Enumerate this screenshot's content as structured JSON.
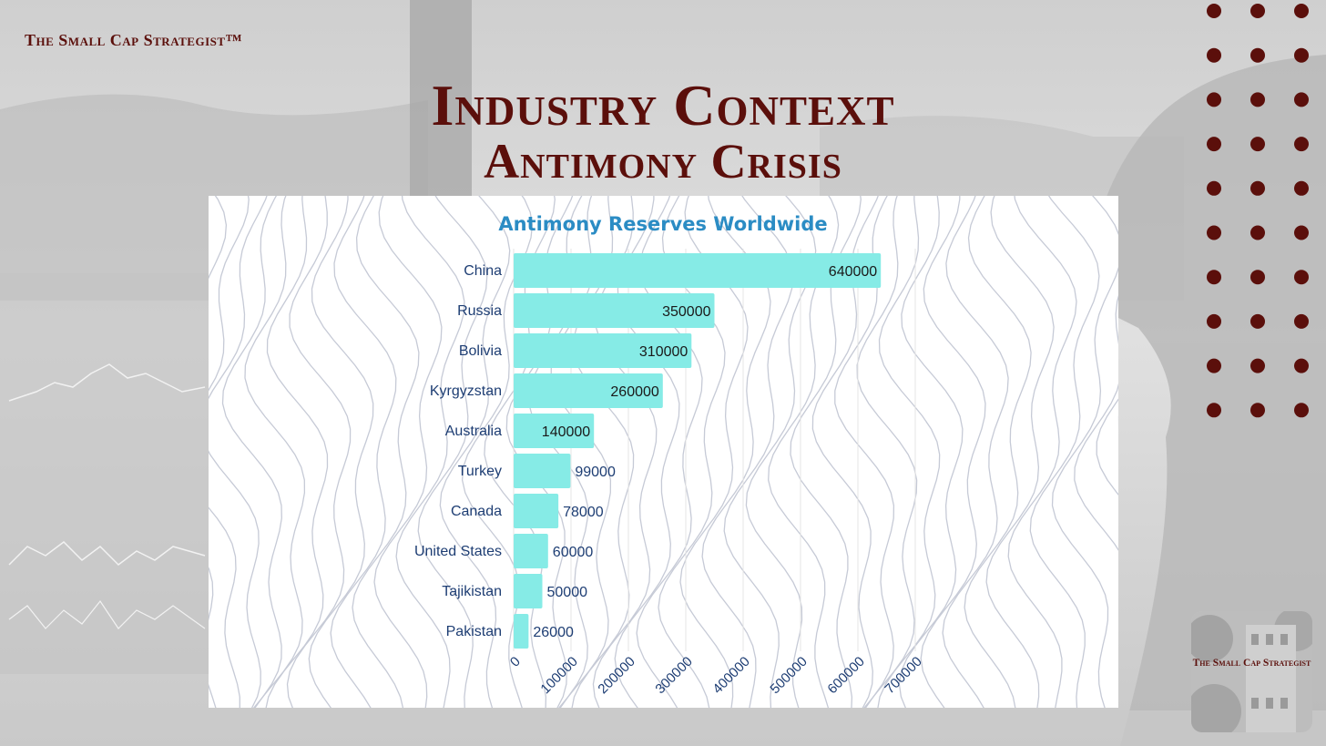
{
  "brand": "The Small Cap Strategist™",
  "title": "Industry Context",
  "subtitle": "Antimony Crisis",
  "logo": {
    "text": "The Small Cap Strategist"
  },
  "colors": {
    "brand": "#5b0f0b",
    "bar": "#86ebe6",
    "chart_title": "#2b8cc4",
    "axis_text": "#1d3d73",
    "value_text": "#1a1a1a"
  },
  "chart_data": {
    "type": "bar",
    "orientation": "horizontal",
    "title": "Antimony Reserves Worldwide",
    "xlabel": "",
    "ylabel": "",
    "categories": [
      "China",
      "Russia",
      "Bolivia",
      "Kyrgyzstan",
      "Australia",
      "Turkey",
      "Canada",
      "United States",
      "Tajikistan",
      "Pakistan"
    ],
    "values": [
      640000,
      350000,
      310000,
      260000,
      140000,
      99000,
      78000,
      60000,
      50000,
      26000
    ],
    "xlim": [
      0,
      700000
    ],
    "xticks": [
      "0",
      "100000",
      "200000",
      "300000",
      "400000",
      "500000",
      "600000",
      "700000"
    ],
    "grid": true,
    "legend": "none"
  }
}
